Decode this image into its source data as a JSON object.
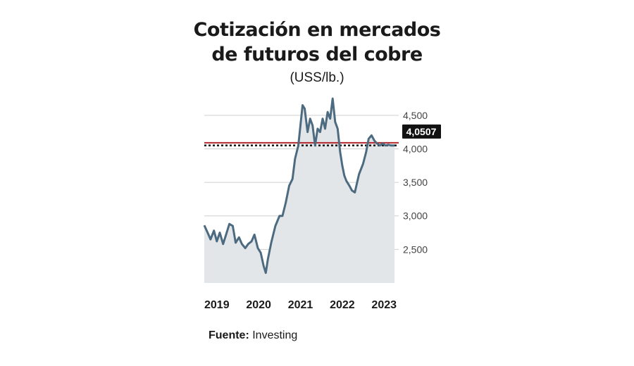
{
  "header": {
    "title_line1": "Cotización en mercados",
    "title_line2": "de futuros del cobre",
    "unit": "(USS/lb.)"
  },
  "source": {
    "label": "Fuente:",
    "value": "Investing"
  },
  "colors": {
    "line": "#4d6b80",
    "area": "#e3e6e9",
    "reference": "#b3262c",
    "dotted": "#111111",
    "badge": "#111111"
  },
  "chart_data": {
    "type": "area",
    "title": "Cotización en mercados de futuros del cobre",
    "ylabel": "(USS/lb.)",
    "ylim": [
      2.0,
      4.75
    ],
    "yticks": [
      2.5,
      3.0,
      3.5,
      4.0,
      4.5
    ],
    "ytick_labels": [
      "2,500",
      "3,000",
      "3,500",
      "4,000",
      "4,500"
    ],
    "x_ticks": [
      2019,
      2020,
      2021,
      2022,
      2023
    ],
    "xlim": [
      2018.75,
      2023.4
    ],
    "last_value": 4.0507,
    "last_value_label": "4,0507",
    "reference_level": 4.09,
    "series": [
      {
        "x": [
          2018.75,
          2018.83,
          2018.9,
          2018.98,
          2019.05,
          2019.12,
          2019.2,
          2019.27,
          2019.35,
          2019.43,
          2019.5,
          2019.58,
          2019.65,
          2019.73,
          2019.8,
          2019.88,
          2019.95,
          2020.03,
          2020.1,
          2020.17,
          2020.22,
          2020.27,
          2020.35,
          2020.45,
          2020.55,
          2020.62,
          2020.7,
          2020.78,
          2020.86,
          2020.92,
          2021.0,
          2021.05,
          2021.1,
          2021.15,
          2021.22,
          2021.28,
          2021.34,
          2021.4,
          2021.46,
          2021.52,
          2021.58,
          2021.64,
          2021.7,
          2021.76,
          2021.82,
          2021.88,
          2021.94,
          2022.0,
          2022.05,
          2022.1,
          2022.15,
          2022.22,
          2022.28,
          2022.35,
          2022.45,
          2022.55,
          2022.62,
          2022.68,
          2022.75,
          2022.82,
          2022.88,
          2022.95,
          2023.02,
          2023.08,
          2023.15,
          2023.22,
          2023.3
        ],
        "values": [
          2.86,
          2.75,
          2.65,
          2.78,
          2.62,
          2.75,
          2.58,
          2.72,
          2.88,
          2.85,
          2.6,
          2.68,
          2.58,
          2.52,
          2.58,
          2.62,
          2.72,
          2.52,
          2.45,
          2.25,
          2.15,
          2.35,
          2.6,
          2.85,
          3.0,
          3.0,
          3.2,
          3.45,
          3.55,
          3.85,
          4.05,
          4.35,
          4.65,
          4.6,
          4.25,
          4.45,
          4.35,
          4.05,
          4.3,
          4.25,
          4.45,
          4.3,
          4.55,
          4.45,
          4.75,
          4.4,
          4.3,
          3.95,
          3.75,
          3.6,
          3.52,
          3.45,
          3.38,
          3.35,
          3.62,
          3.78,
          3.95,
          4.15,
          4.2,
          4.12,
          4.08,
          4.05,
          4.08,
          4.05,
          4.06,
          4.05,
          4.0507
        ]
      }
    ]
  }
}
